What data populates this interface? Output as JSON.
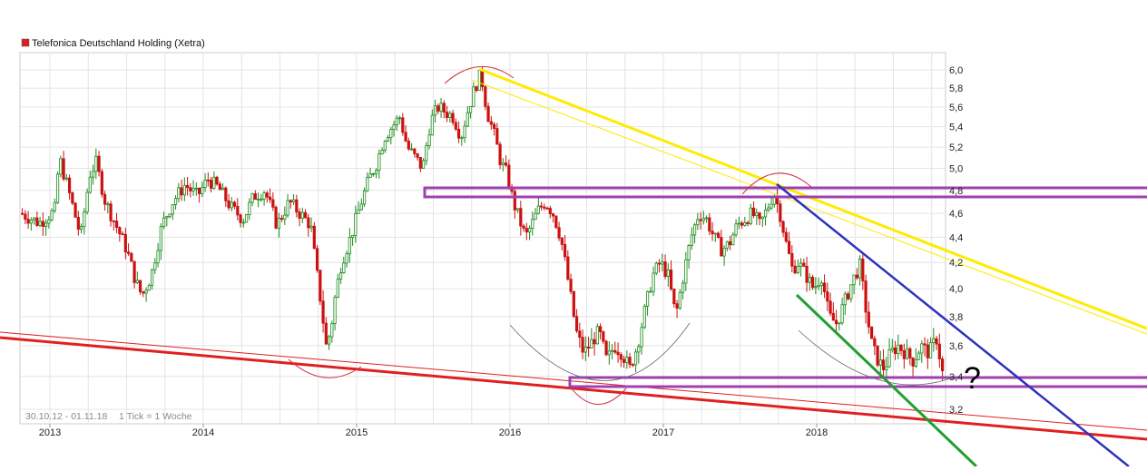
{
  "legend": {
    "title": "Telefonica Deutschland Holding (Xetra)",
    "swatch_color": "#e02020"
  },
  "footer": {
    "range": "30.10.12 - 01.11.18",
    "tick_info": "1 Tick = 1 Woche"
  },
  "annotation": {
    "question_mark": "?"
  },
  "colors": {
    "up_candle": "#1a8a1a",
    "down_candle": "#cc1111",
    "grid": "#e4e4e4",
    "frame": "#cccccc",
    "support_line": "#e02020",
    "yellow_trend": "#ffeb00",
    "purple_zone": "#a040b0",
    "blue_trend": "#3030c0",
    "green_trend": "#20a030",
    "arc_red": "#d03040",
    "arc_gray": "#666666"
  },
  "chart_data": {
    "type": "candlestick",
    "title": "Telefonica Deutschland Holding (Xetra)",
    "x_ticks": [
      "2013",
      "2014",
      "2015",
      "2016",
      "2017",
      "2018"
    ],
    "x_tick_values": [
      2013.0,
      2014.0,
      2015.0,
      2016.0,
      2017.0,
      2018.0
    ],
    "y_ticks": [
      "3,2",
      "3,4",
      "3,6",
      "3,8",
      "4,0",
      "4,2",
      "4,4",
      "4,6",
      "4,8",
      "5,0",
      "5,2",
      "5,4",
      "5,6",
      "5,8",
      "6,0"
    ],
    "y_tick_values": [
      3.2,
      3.4,
      3.6,
      3.8,
      4.0,
      4.2,
      4.4,
      4.6,
      4.8,
      5.0,
      5.2,
      5.4,
      5.6,
      5.8,
      6.0
    ],
    "xlim": [
      2012.82,
      2018.84
    ],
    "ylim": [
      3.1,
      6.12
    ],
    "y_scale": "log",
    "grid": true,
    "legend_position": "top-left",
    "series_approx": [
      {
        "t": 2012.83,
        "v": 4.6
      },
      {
        "t": 2012.95,
        "v": 4.52
      },
      {
        "t": 2013.05,
        "v": 4.62
      },
      {
        "t": 2013.08,
        "v": 5.1
      },
      {
        "t": 2013.15,
        "v": 4.75
      },
      {
        "t": 2013.22,
        "v": 4.4
      },
      {
        "t": 2013.28,
        "v": 4.95
      },
      {
        "t": 2013.32,
        "v": 5.05
      },
      {
        "t": 2013.38,
        "v": 4.7
      },
      {
        "t": 2013.45,
        "v": 4.5
      },
      {
        "t": 2013.52,
        "v": 4.3
      },
      {
        "t": 2013.58,
        "v": 4.05
      },
      {
        "t": 2013.62,
        "v": 3.95
      },
      {
        "t": 2013.68,
        "v": 4.1
      },
      {
        "t": 2013.75,
        "v": 4.5
      },
      {
        "t": 2013.82,
        "v": 4.7
      },
      {
        "t": 2013.9,
        "v": 4.85
      },
      {
        "t": 2013.98,
        "v": 4.75
      },
      {
        "t": 2014.05,
        "v": 4.9
      },
      {
        "t": 2014.12,
        "v": 4.82
      },
      {
        "t": 2014.2,
        "v": 4.65
      },
      {
        "t": 2014.28,
        "v": 4.55
      },
      {
        "t": 2014.35,
        "v": 4.75
      },
      {
        "t": 2014.42,
        "v": 4.8
      },
      {
        "t": 2014.5,
        "v": 4.5
      },
      {
        "t": 2014.58,
        "v": 4.7
      },
      {
        "t": 2014.65,
        "v": 4.6
      },
      {
        "t": 2014.72,
        "v": 4.5
      },
      {
        "t": 2014.75,
        "v": 4.2
      },
      {
        "t": 2014.78,
        "v": 3.95
      },
      {
        "t": 2014.82,
        "v": 3.6
      },
      {
        "t": 2014.85,
        "v": 3.7
      },
      {
        "t": 2014.88,
        "v": 3.95
      },
      {
        "t": 2014.92,
        "v": 4.2
      },
      {
        "t": 2014.98,
        "v": 4.4
      },
      {
        "t": 2015.05,
        "v": 4.7
      },
      {
        "t": 2015.1,
        "v": 4.9
      },
      {
        "t": 2015.15,
        "v": 5.05
      },
      {
        "t": 2015.2,
        "v": 5.3
      },
      {
        "t": 2015.25,
        "v": 5.4
      },
      {
        "t": 2015.3,
        "v": 5.5
      },
      {
        "t": 2015.35,
        "v": 5.2
      },
      {
        "t": 2015.4,
        "v": 5.1
      },
      {
        "t": 2015.45,
        "v": 5.0
      },
      {
        "t": 2015.5,
        "v": 5.45
      },
      {
        "t": 2015.55,
        "v": 5.6
      },
      {
        "t": 2015.6,
        "v": 5.55
      },
      {
        "t": 2015.65,
        "v": 5.5
      },
      {
        "t": 2015.7,
        "v": 5.3
      },
      {
        "t": 2015.75,
        "v": 5.6
      },
      {
        "t": 2015.8,
        "v": 5.85
      },
      {
        "t": 2015.83,
        "v": 5.95
      },
      {
        "t": 2015.87,
        "v": 5.55
      },
      {
        "t": 2015.92,
        "v": 5.3
      },
      {
        "t": 2015.96,
        "v": 5.05
      },
      {
        "t": 2016.0,
        "v": 4.95
      },
      {
        "t": 2016.04,
        "v": 4.7
      },
      {
        "t": 2016.08,
        "v": 4.55
      },
      {
        "t": 2016.12,
        "v": 4.4
      },
      {
        "t": 2016.16,
        "v": 4.5
      },
      {
        "t": 2016.2,
        "v": 4.62
      },
      {
        "t": 2016.25,
        "v": 4.7
      },
      {
        "t": 2016.3,
        "v": 4.6
      },
      {
        "t": 2016.35,
        "v": 4.4
      },
      {
        "t": 2016.4,
        "v": 4.05
      },
      {
        "t": 2016.45,
        "v": 3.7
      },
      {
        "t": 2016.5,
        "v": 3.55
      },
      {
        "t": 2016.55,
        "v": 3.62
      },
      {
        "t": 2016.6,
        "v": 3.7
      },
      {
        "t": 2016.65,
        "v": 3.5
      },
      {
        "t": 2016.7,
        "v": 3.6
      },
      {
        "t": 2016.75,
        "v": 3.55
      },
      {
        "t": 2016.8,
        "v": 3.45
      },
      {
        "t": 2016.85,
        "v": 3.6
      },
      {
        "t": 2016.9,
        "v": 3.85
      },
      {
        "t": 2016.95,
        "v": 4.1
      },
      {
        "t": 2017.0,
        "v": 4.2
      },
      {
        "t": 2017.05,
        "v": 4.1
      },
      {
        "t": 2017.1,
        "v": 3.8
      },
      {
        "t": 2017.15,
        "v": 4.1
      },
      {
        "t": 2017.2,
        "v": 4.4
      },
      {
        "t": 2017.25,
        "v": 4.6
      },
      {
        "t": 2017.3,
        "v": 4.55
      },
      {
        "t": 2017.35,
        "v": 4.4
      },
      {
        "t": 2017.4,
        "v": 4.3
      },
      {
        "t": 2017.45,
        "v": 4.35
      },
      {
        "t": 2017.5,
        "v": 4.5
      },
      {
        "t": 2017.55,
        "v": 4.55
      },
      {
        "t": 2017.6,
        "v": 4.6
      },
      {
        "t": 2017.65,
        "v": 4.5
      },
      {
        "t": 2017.7,
        "v": 4.65
      },
      {
        "t": 2017.74,
        "v": 4.78
      },
      {
        "t": 2017.78,
        "v": 4.6
      },
      {
        "t": 2017.82,
        "v": 4.35
      },
      {
        "t": 2017.86,
        "v": 4.15
      },
      {
        "t": 2017.9,
        "v": 4.2
      },
      {
        "t": 2017.95,
        "v": 4.1
      },
      {
        "t": 2018.0,
        "v": 4.0
      },
      {
        "t": 2018.05,
        "v": 4.1
      },
      {
        "t": 2018.1,
        "v": 3.8
      },
      {
        "t": 2018.15,
        "v": 3.75
      },
      {
        "t": 2018.2,
        "v": 3.9
      },
      {
        "t": 2018.25,
        "v": 4.05
      },
      {
        "t": 2018.3,
        "v": 4.18
      },
      {
        "t": 2018.34,
        "v": 3.85
      },
      {
        "t": 2018.38,
        "v": 3.6
      },
      {
        "t": 2018.42,
        "v": 3.5
      },
      {
        "t": 2018.46,
        "v": 3.45
      },
      {
        "t": 2018.5,
        "v": 3.55
      },
      {
        "t": 2018.55,
        "v": 3.6
      },
      {
        "t": 2018.6,
        "v": 3.55
      },
      {
        "t": 2018.65,
        "v": 3.5
      },
      {
        "t": 2018.7,
        "v": 3.6
      },
      {
        "t": 2018.75,
        "v": 3.55
      },
      {
        "t": 2018.8,
        "v": 3.65
      },
      {
        "t": 2018.84,
        "v": 3.42
      }
    ]
  }
}
